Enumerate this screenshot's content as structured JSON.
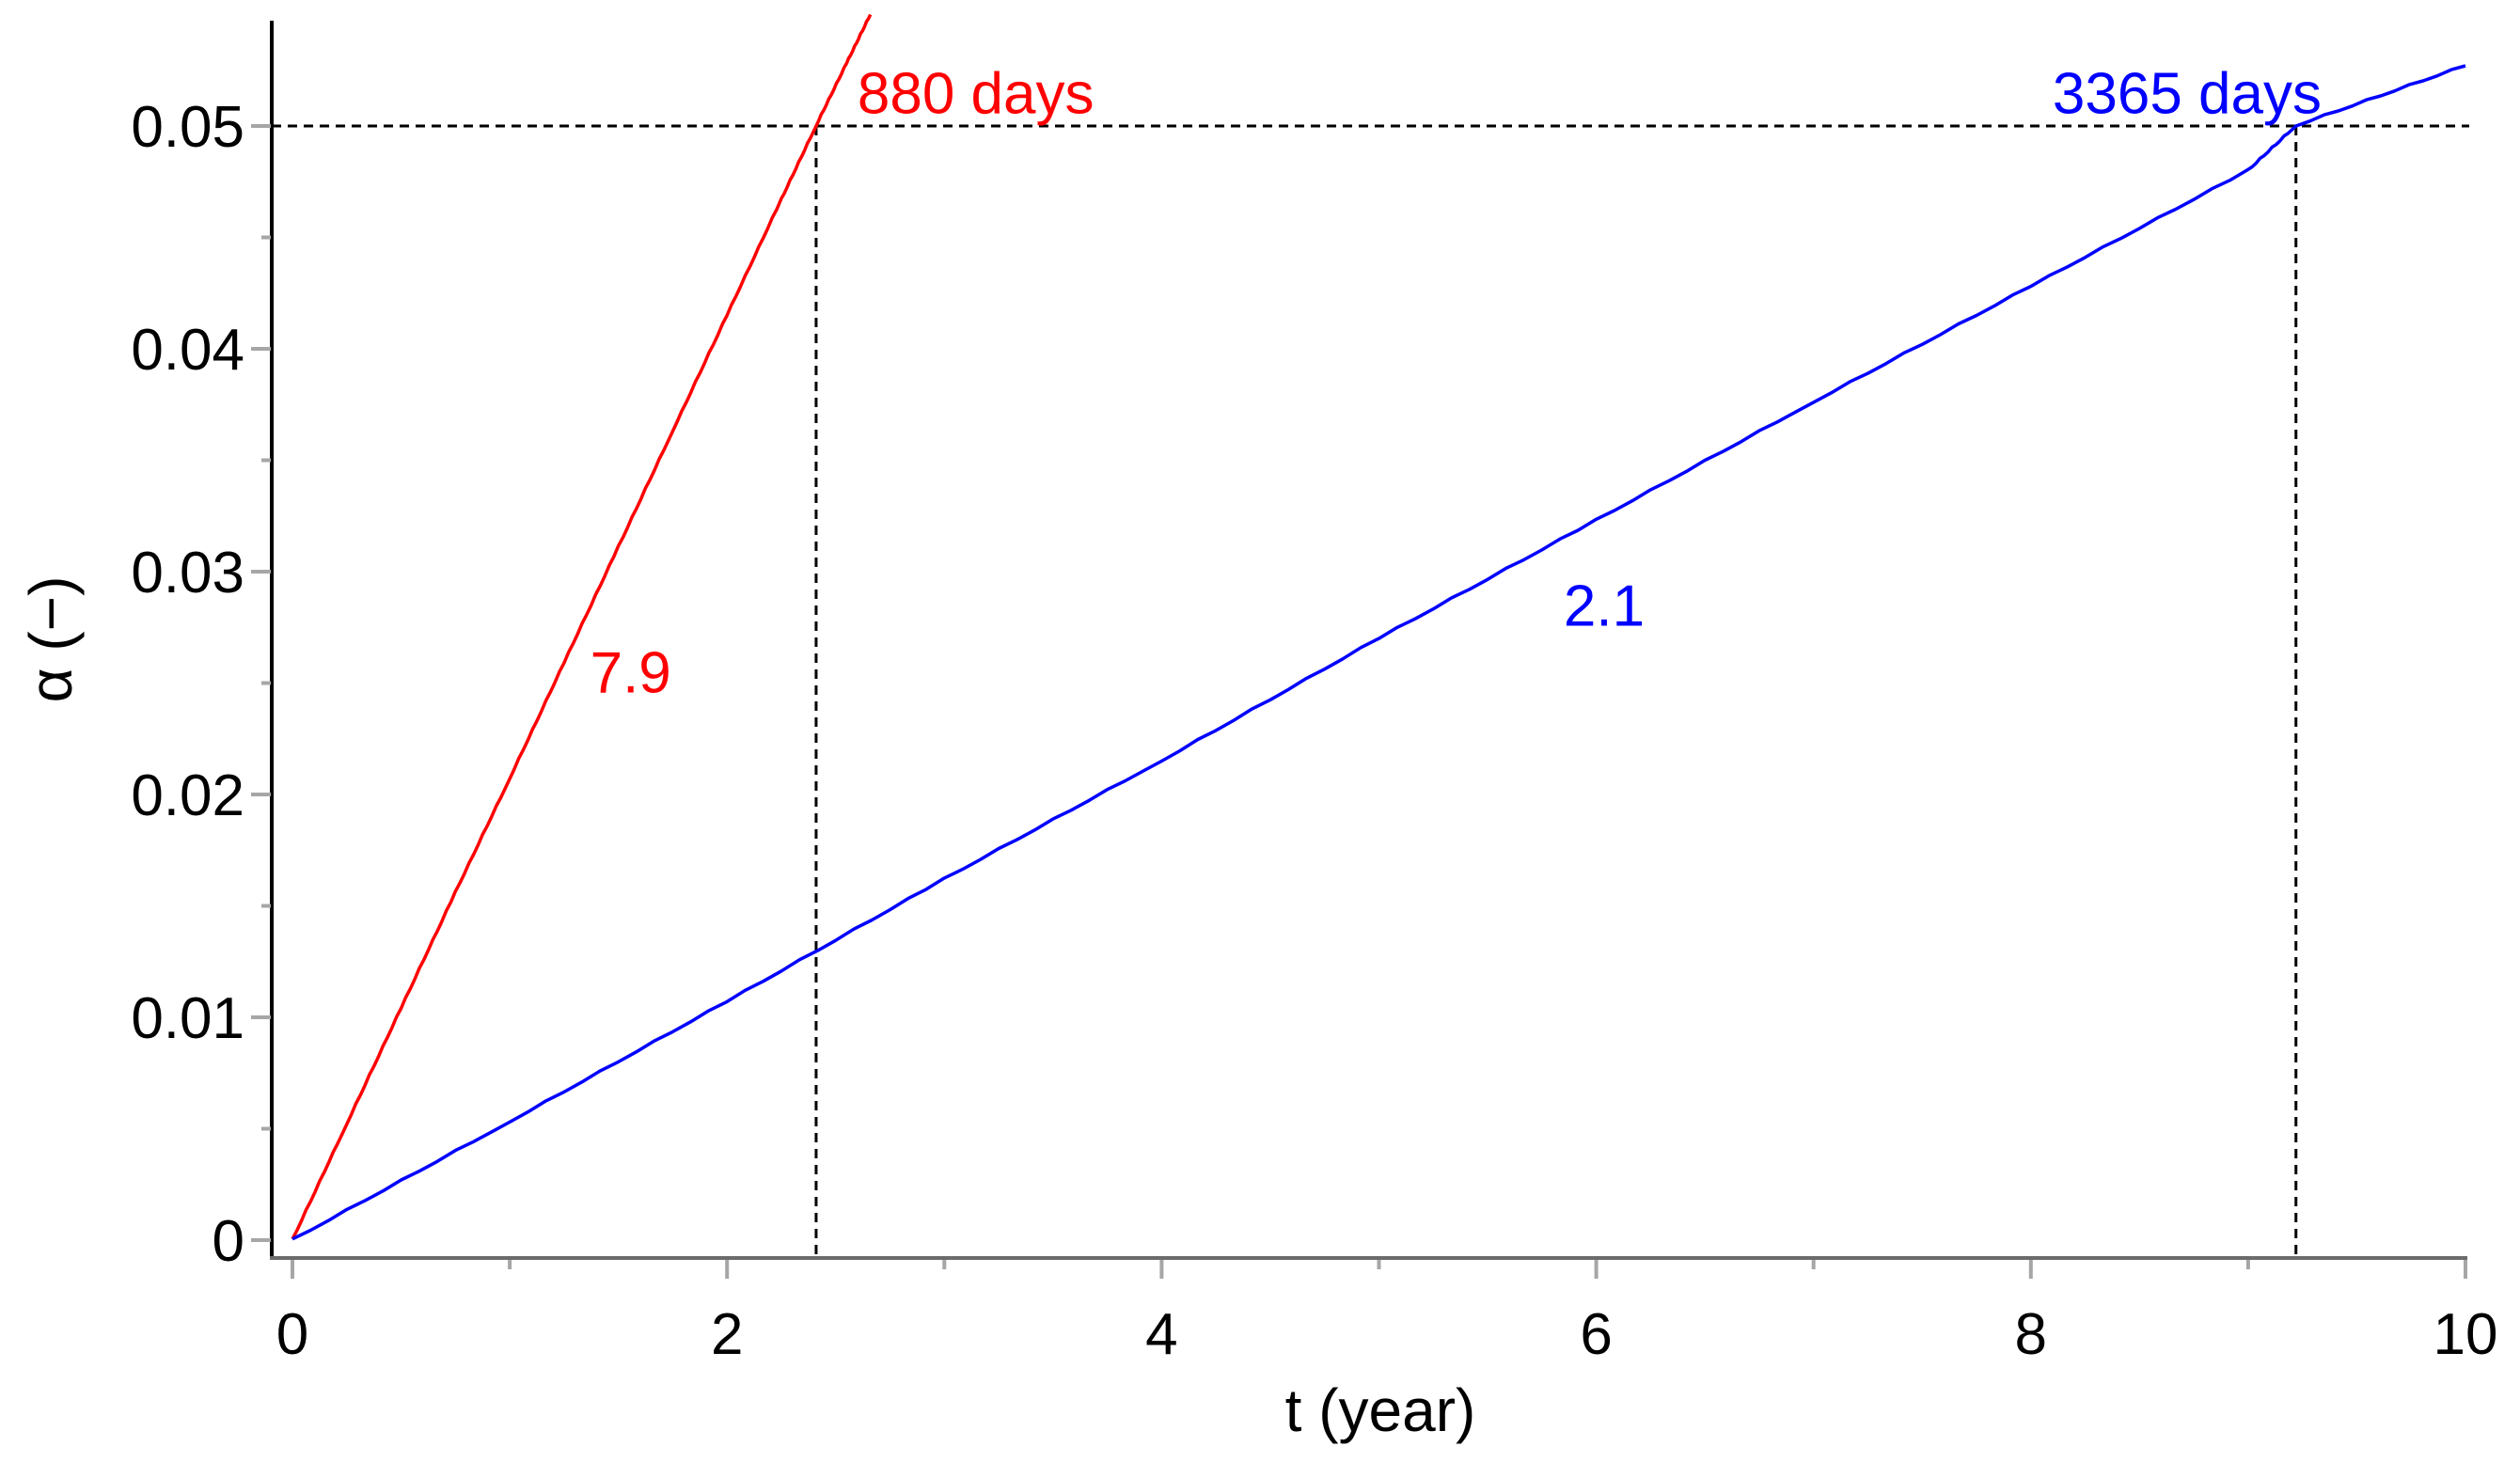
{
  "chart_data": {
    "type": "line",
    "title": "",
    "xlabel": "t (year)",
    "ylabel": "α (−)",
    "xlim": [
      0,
      10
    ],
    "ylim": [
      0,
      0.055
    ],
    "grid": false,
    "legend": null,
    "x_ticks": [
      0,
      2,
      4,
      6,
      8,
      10
    ],
    "x_tick_labels": [
      "0",
      "2",
      "4",
      "6",
      "8",
      "10"
    ],
    "x_minor_ticks": [
      1,
      3,
      5,
      7,
      9
    ],
    "y_ticks": [
      0,
      0.01,
      0.02,
      0.03,
      0.04,
      0.05
    ],
    "y_tick_labels": [
      "0",
      "0.01",
      "0.02",
      "0.03",
      "0.04",
      "0.05"
    ],
    "y_minor_ticks": [
      0.005,
      0.015,
      0.025,
      0.035,
      0.045
    ],
    "series": [
      {
        "name": "7.9",
        "color": "#ff0000",
        "x": [
          0,
          0.25,
          0.5,
          0.75,
          1.0,
          1.25,
          1.5,
          1.75,
          2.0,
          2.25,
          2.41,
          2.55,
          2.66
        ],
        "y": [
          0,
          0.0052,
          0.0104,
          0.0156,
          0.0207,
          0.0259,
          0.0311,
          0.0363,
          0.0415,
          0.0467,
          0.05,
          0.0528,
          0.055
        ]
      },
      {
        "name": "2.1",
        "color": "#0000ff",
        "x": [
          0,
          1,
          2,
          3,
          4,
          5,
          6,
          7,
          8,
          9,
          9.22,
          10
        ],
        "y": [
          0,
          0.0053,
          0.0107,
          0.0162,
          0.0215,
          0.027,
          0.0323,
          0.0376,
          0.0428,
          0.048,
          0.05,
          0.0527
        ]
      }
    ],
    "reference_lines": [
      {
        "orientation": "horizontal",
        "y": 0.05,
        "style": "dashed",
        "color": "#000000"
      },
      {
        "orientation": "vertical",
        "x": 2.41,
        "y_max": 0.05,
        "style": "dashed",
        "color": "#000000"
      },
      {
        "orientation": "vertical",
        "x": 9.22,
        "y_max": 0.05,
        "style": "dashed",
        "color": "#000000"
      }
    ],
    "annotations": [
      {
        "text": "880 days",
        "x": 2.6,
        "y": 0.0515,
        "color": "#ff0000"
      },
      {
        "text": "3365 days",
        "x": 8.1,
        "y": 0.0515,
        "color": "#0000ff"
      },
      {
        "text": "7.9",
        "x": 1.37,
        "y": 0.0255,
        "color": "#ff0000"
      },
      {
        "text": "2.1",
        "x": 5.85,
        "y": 0.0285,
        "color": "#0000ff"
      }
    ]
  }
}
